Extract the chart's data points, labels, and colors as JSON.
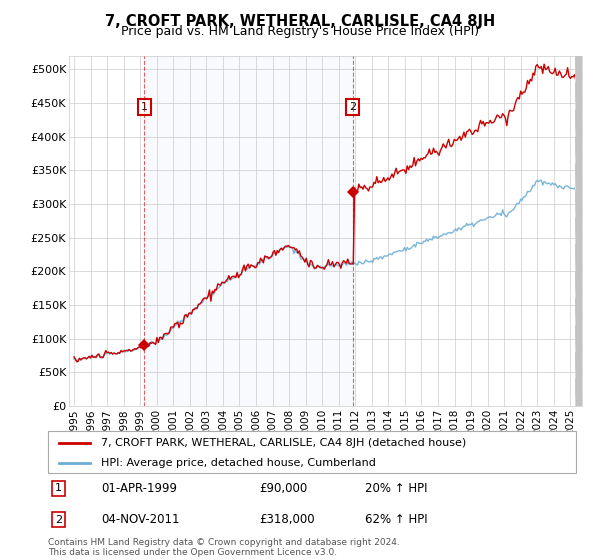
{
  "title": "7, CROFT PARK, WETHERAL, CARLISLE, CA4 8JH",
  "subtitle": "Price paid vs. HM Land Registry's House Price Index (HPI)",
  "hpi_label": "HPI: Average price, detached house, Cumberland",
  "property_label": "7, CROFT PARK, WETHERAL, CARLISLE, CA4 8JH (detached house)",
  "hpi_color": "#6baed6",
  "property_color": "#cc0000",
  "annotation1_date": "01-APR-1999",
  "annotation1_price": "£90,000",
  "annotation1_pct": "20% ↑ HPI",
  "annotation2_date": "04-NOV-2011",
  "annotation2_price": "£318,000",
  "annotation2_pct": "62% ↑ HPI",
  "footer": "Contains HM Land Registry data © Crown copyright and database right 2024.\nThis data is licensed under the Open Government Licence v3.0.",
  "ylim_min": 0,
  "ylim_max": 520000,
  "yticks": [
    0,
    50000,
    100000,
    150000,
    200000,
    250000,
    300000,
    350000,
    400000,
    450000,
    500000
  ],
  "ytick_labels": [
    "£0",
    "£50K",
    "£100K",
    "£150K",
    "£200K",
    "£250K",
    "£300K",
    "£350K",
    "£400K",
    "£450K",
    "£500K"
  ],
  "sale1_year": 1999.25,
  "sale1_price": 90000,
  "sale2_year": 2011.84,
  "sale2_price": 318000,
  "xlim_min": 1994.7,
  "xlim_max": 2025.7
}
